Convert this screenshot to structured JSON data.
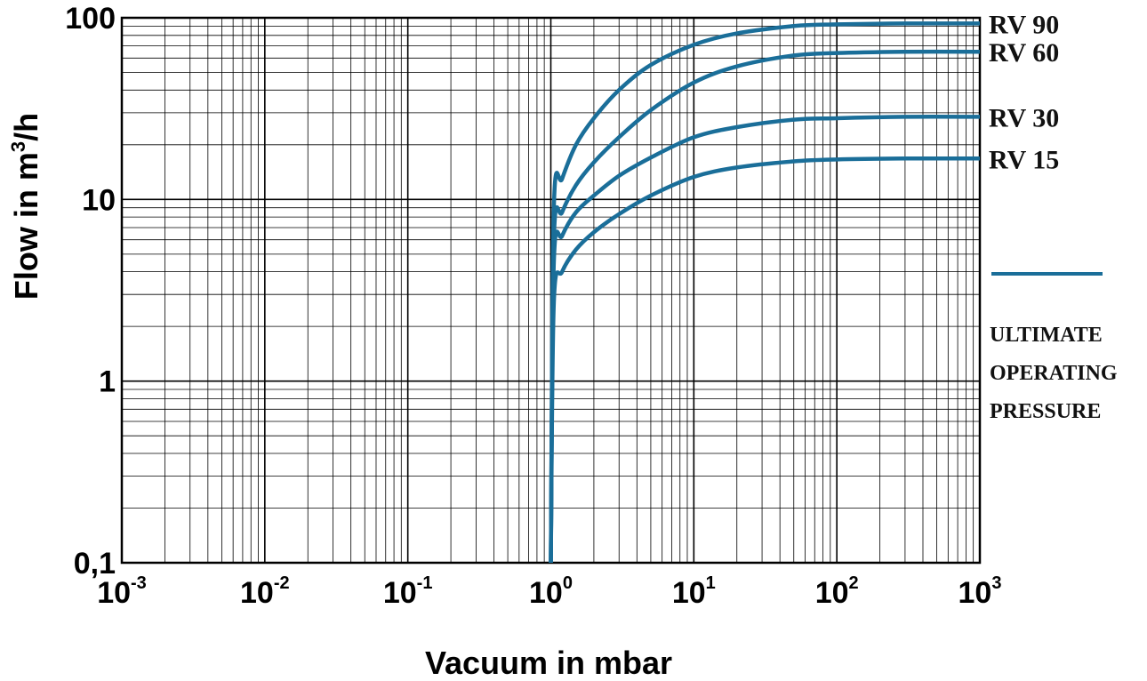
{
  "chart_data": {
    "type": "line",
    "xlabel": "Vacuum in mbar",
    "ylabel": {
      "prefix": "Flow in m",
      "sup": "3",
      "suffix": "/h"
    },
    "xscale": "log",
    "yscale": "log",
    "xlim": [
      0.001,
      1000
    ],
    "ylim": [
      0.1,
      100
    ],
    "grid": true,
    "x_ticks": [
      {
        "base": "10",
        "exp": "-3"
      },
      {
        "base": "10",
        "exp": "-2"
      },
      {
        "base": "10",
        "exp": "-1"
      },
      {
        "base": "10",
        "exp": "0"
      },
      {
        "base": "10",
        "exp": "1"
      },
      {
        "base": "10",
        "exp": "2"
      },
      {
        "base": "10",
        "exp": "3"
      }
    ],
    "y_ticks": [
      "0,1",
      "1",
      "10",
      "100"
    ],
    "line_color": "#1a6e99",
    "series": [
      {
        "name": "RV 90",
        "x": [
          1,
          1.05,
          1.2,
          1.5,
          2,
          3,
          5,
          10,
          20,
          50,
          100,
          300,
          1000
        ],
        "y": [
          0.1,
          9,
          13,
          20,
          28,
          40,
          55,
          71,
          82,
          90,
          92,
          93,
          93
        ]
      },
      {
        "name": "RV 60",
        "x": [
          1,
          1.05,
          1.2,
          1.5,
          2,
          3,
          5,
          10,
          20,
          50,
          100,
          300,
          1000
        ],
        "y": [
          0.1,
          6,
          8.5,
          12,
          16,
          22,
          31,
          44,
          54,
          62,
          64,
          65,
          65
        ]
      },
      {
        "name": "RV 30",
        "x": [
          1,
          1.05,
          1.2,
          1.5,
          2,
          3,
          5,
          10,
          20,
          50,
          100,
          300,
          1000
        ],
        "y": [
          0.1,
          4.5,
          6.3,
          8.5,
          10.5,
          13.5,
          17,
          22,
          25,
          27.5,
          28,
          28.5,
          28.5
        ]
      },
      {
        "name": "RV 15",
        "x": [
          1,
          1.05,
          1.2,
          1.5,
          2,
          3,
          5,
          10,
          20,
          50,
          100,
          300,
          1000
        ],
        "y": [
          0.1,
          2.7,
          4,
          5.3,
          6.6,
          8.3,
          10.5,
          13.3,
          15,
          16.2,
          16.6,
          16.8,
          16.8
        ]
      }
    ],
    "legend": {
      "lines": [
        "ULTIMATE",
        "OPERATING",
        "PRESSURE"
      ]
    }
  }
}
